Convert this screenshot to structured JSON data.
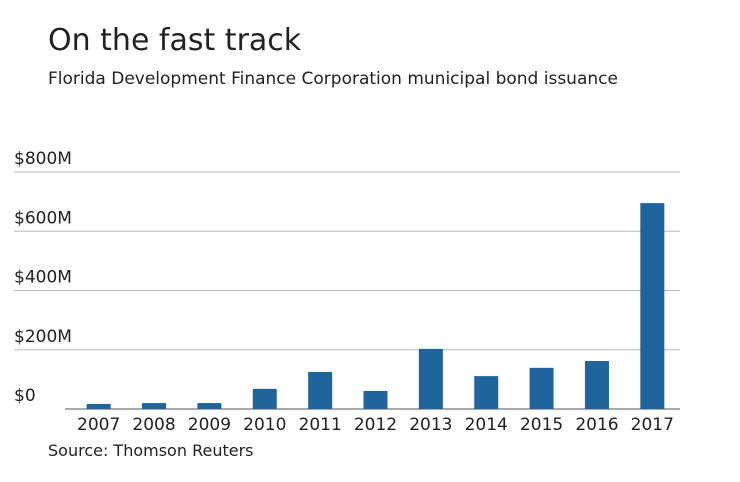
{
  "chart_data": {
    "type": "bar",
    "title": "On the fast track",
    "subtitle": "Florida Development Finance Corporation municipal bond issuance",
    "source": "Source: Thomson Reuters",
    "categories": [
      "2007",
      "2008",
      "2009",
      "2010",
      "2011",
      "2012",
      "2013",
      "2014",
      "2015",
      "2016",
      "2017"
    ],
    "values": [
      17,
      20,
      20,
      68,
      125,
      61,
      203,
      111,
      139,
      162,
      695
    ],
    "color": "#1f649c",
    "ylim": [
      0,
      800
    ],
    "yticks": [
      {
        "value": 0,
        "label": "$0"
      },
      {
        "value": 200,
        "label": "$200M"
      },
      {
        "value": 400,
        "label": "$400M"
      },
      {
        "value": 600,
        "label": "$600M"
      },
      {
        "value": 800,
        "label": "$800M"
      }
    ],
    "grid": true
  }
}
